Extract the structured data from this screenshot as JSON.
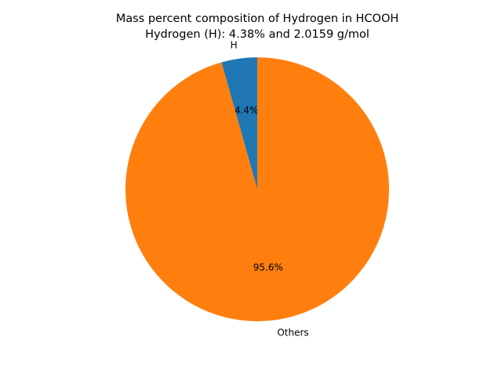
{
  "chart_data": {
    "type": "pie",
    "title": "Mass percent composition of Hydrogen in HCOOH",
    "subtitle": "Hydrogen (H): 4.38% and 2.0159 g/mol",
    "categories": [
      "H",
      "Others"
    ],
    "values": [
      4.38,
      95.62
    ],
    "value_labels": [
      "4.4%",
      "95.6%"
    ],
    "colors": [
      "#1f77b4",
      "#ff7f0e"
    ],
    "start_angle": 90,
    "counterclockwise": true
  }
}
